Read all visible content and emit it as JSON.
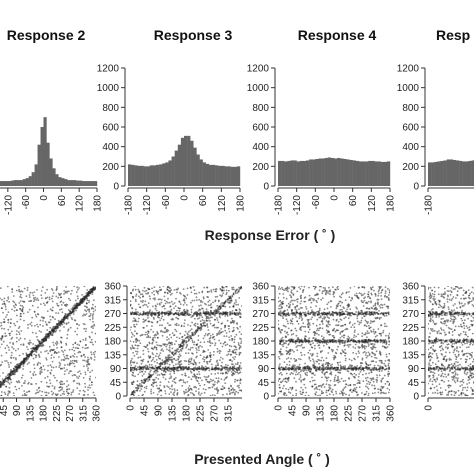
{
  "figure": {
    "top_xlabel": "Response Error ( ˚ )",
    "bottom_xlabel": "Presented Angle ( ˚ )"
  },
  "chart_data": [
    {
      "type": "bar",
      "title": "Response 2",
      "categories": [
        -175,
        -165,
        -155,
        -145,
        -135,
        -125,
        -115,
        -105,
        -95,
        -85,
        -75,
        -65,
        -55,
        -45,
        -35,
        -25,
        -15,
        -5,
        5,
        15,
        25,
        35,
        45,
        55,
        65,
        75,
        85,
        95,
        105,
        115,
        125,
        135,
        145,
        155,
        165,
        175
      ],
      "values": [
        50,
        50,
        50,
        50,
        50,
        50,
        50,
        55,
        60,
        60,
        60,
        70,
        80,
        100,
        140,
        220,
        420,
        600,
        700,
        440,
        280,
        180,
        120,
        90,
        80,
        70,
        60,
        60,
        60,
        55,
        55,
        50,
        50,
        50,
        50,
        50
      ],
      "xticks": [
        -120,
        -60,
        0,
        60,
        120,
        180
      ],
      "xlim": [
        -180,
        180
      ],
      "ylim": [
        0,
        1200
      ]
    },
    {
      "type": "bar",
      "title": "Response 3",
      "categories": [
        -175,
        -165,
        -155,
        -145,
        -135,
        -125,
        -115,
        -105,
        -95,
        -85,
        -75,
        -65,
        -55,
        -45,
        -35,
        -25,
        -15,
        -5,
        5,
        15,
        25,
        35,
        45,
        55,
        65,
        75,
        85,
        95,
        105,
        115,
        125,
        135,
        145,
        155,
        165,
        175
      ],
      "values": [
        220,
        215,
        210,
        205,
        205,
        200,
        200,
        210,
        210,
        215,
        220,
        230,
        240,
        260,
        300,
        360,
        420,
        490,
        510,
        510,
        460,
        390,
        320,
        270,
        240,
        225,
        215,
        215,
        210,
        205,
        205,
        200,
        200,
        195,
        195,
        200
      ],
      "xticks": [
        -180,
        -120,
        -60,
        0,
        60,
        120,
        180
      ],
      "yticks": [
        0,
        200,
        400,
        600,
        800,
        1000,
        1200
      ],
      "xlim": [
        -180,
        180
      ],
      "ylim": [
        0,
        1200
      ]
    },
    {
      "type": "bar",
      "title": "Response 4",
      "categories": [
        -175,
        -165,
        -155,
        -145,
        -135,
        -125,
        -115,
        -105,
        -95,
        -85,
        -75,
        -65,
        -55,
        -45,
        -35,
        -25,
        -15,
        -5,
        5,
        15,
        25,
        35,
        45,
        55,
        65,
        75,
        85,
        95,
        105,
        115,
        125,
        135,
        145,
        155,
        165,
        175
      ],
      "values": [
        255,
        255,
        250,
        255,
        260,
        260,
        250,
        255,
        255,
        260,
        270,
        270,
        275,
        280,
        280,
        285,
        290,
        285,
        280,
        285,
        280,
        275,
        270,
        265,
        260,
        255,
        250,
        250,
        250,
        255,
        255,
        250,
        250,
        245,
        245,
        250
      ],
      "xticks": [
        -180,
        -120,
        -60,
        0,
        60,
        120,
        180
      ],
      "yticks": [
        0,
        200,
        400,
        600,
        800,
        1000,
        1200
      ],
      "xlim": [
        -180,
        180
      ],
      "ylim": [
        0,
        1200
      ]
    },
    {
      "type": "bar",
      "title": "Resp",
      "categories": [
        -175,
        -165,
        -155,
        -145,
        -135,
        -125,
        -115,
        -105,
        -95,
        -85,
        -75,
        -65,
        -55,
        -45,
        -35,
        -25,
        -15,
        -5,
        5,
        15,
        25,
        35,
        45,
        55,
        65,
        75,
        85,
        95,
        105,
        115,
        125,
        135,
        145,
        155,
        165,
        175
      ],
      "values": [
        240,
        240,
        245,
        250,
        255,
        260,
        270,
        270,
        265,
        260,
        255,
        250,
        250,
        255,
        260,
        265,
        270,
        270,
        265,
        260,
        255,
        250,
        250,
        250,
        255,
        255,
        250,
        245,
        240,
        240,
        245,
        250,
        250,
        245,
        240,
        240
      ],
      "xticks": [
        -180
      ],
      "yticks": [
        0,
        200,
        400,
        600,
        800,
        1000,
        1200
      ],
      "xlim": [
        -180,
        180
      ],
      "ylim": [
        0,
        1200
      ]
    },
    {
      "type": "scatter",
      "pattern": "diagonal",
      "xticks": [
        45,
        90,
        135,
        180,
        225,
        270,
        315,
        360
      ],
      "xlim": [
        0,
        360
      ],
      "ylim": [
        0,
        360
      ]
    },
    {
      "type": "scatter",
      "pattern": "diagonal-plus-bands",
      "bands": [
        90,
        270
      ],
      "xticks": [
        0,
        45,
        90,
        135,
        180,
        225,
        270,
        315
      ],
      "yticks": [
        0,
        45,
        90,
        135,
        180,
        225,
        270,
        315,
        360
      ],
      "xlim": [
        0,
        360
      ],
      "ylim": [
        0,
        360
      ]
    },
    {
      "type": "scatter",
      "pattern": "bands",
      "bands": [
        90,
        180,
        270
      ],
      "xticks": [
        0,
        45,
        90,
        135,
        180,
        225,
        270,
        315,
        360
      ],
      "yticks": [
        0,
        45,
        90,
        135,
        180,
        225,
        270,
        315,
        360
      ],
      "xlim": [
        0,
        360
      ],
      "ylim": [
        0,
        360
      ]
    },
    {
      "type": "scatter",
      "pattern": "bands",
      "bands": [
        90,
        180,
        270
      ],
      "xticks": [
        0
      ],
      "yticks": [
        0,
        45,
        90,
        135,
        180,
        225,
        270,
        315,
        360
      ],
      "xlim": [
        0,
        360
      ],
      "ylim": [
        0,
        360
      ]
    }
  ]
}
